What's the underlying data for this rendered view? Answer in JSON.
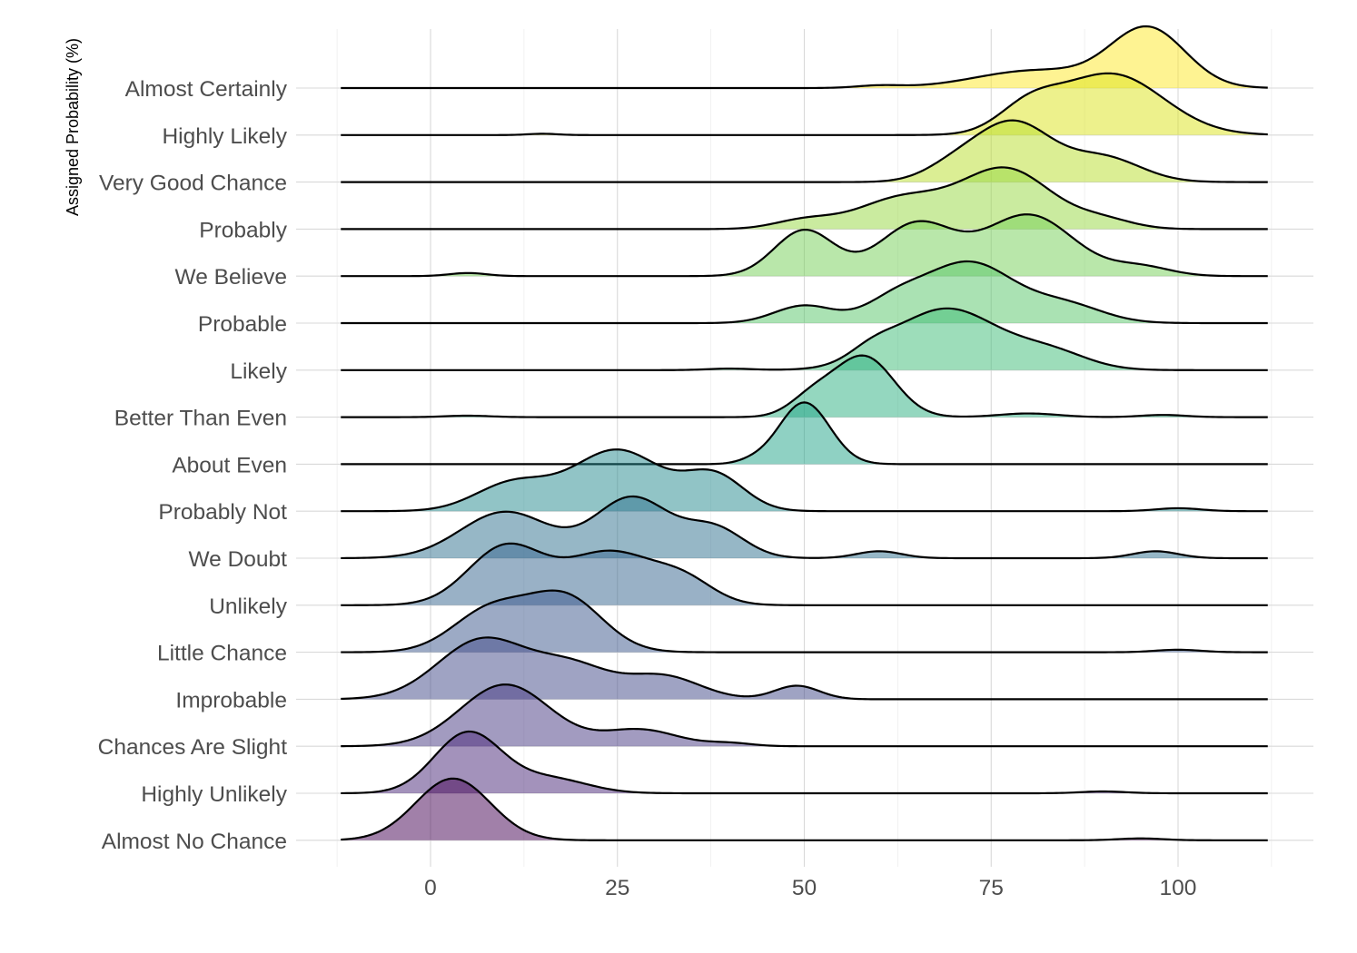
{
  "chart_data": {
    "type": "ridgeline",
    "ylabel": "Assigned Probability (%)",
    "xlabel": "",
    "x_range": [
      -12,
      112
    ],
    "x_ticks": [
      0,
      25,
      50,
      75,
      100
    ],
    "grid": true,
    "color_scale": "viridis",
    "series": [
      {
        "name": "Almost Certainly",
        "color": "#FDE725",
        "components": [
          [
            96,
            5,
            1.0
          ],
          [
            81,
            8,
            0.3
          ],
          [
            60,
            3,
            0.04
          ]
        ]
      },
      {
        "name": "Highly Likely",
        "color": "#DCE319",
        "components": [
          [
            91,
            7,
            0.72
          ],
          [
            80,
            4,
            0.28
          ],
          [
            15,
            2,
            0.015
          ]
        ]
      },
      {
        "name": "Very Good Chance",
        "color": "#B8DE29",
        "components": [
          [
            78,
            5,
            0.72
          ],
          [
            90,
            5,
            0.3
          ],
          [
            70,
            4,
            0.18
          ]
        ]
      },
      {
        "name": "Probably",
        "color": "#95D840",
        "components": [
          [
            77,
            6,
            0.55
          ],
          [
            63,
            6,
            0.28
          ],
          [
            90,
            4,
            0.08
          ],
          [
            50,
            4,
            0.08
          ]
        ]
      },
      {
        "name": "We Believe",
        "color": "#73D055",
        "components": [
          [
            50,
            4,
            0.3
          ],
          [
            65,
            5,
            0.34
          ],
          [
            80,
            6,
            0.4
          ],
          [
            95,
            4,
            0.06
          ],
          [
            5,
            2.5,
            0.02
          ]
        ]
      },
      {
        "name": "Probable",
        "color": "#55C667",
        "components": [
          [
            72,
            6,
            0.62
          ],
          [
            62,
            4,
            0.2
          ],
          [
            50,
            4,
            0.18
          ],
          [
            85,
            5,
            0.18
          ]
        ]
      },
      {
        "name": "Likely",
        "color": "#3CBB75",
        "components": [
          [
            69,
            7,
            0.82
          ],
          [
            83,
            5,
            0.22
          ],
          [
            59,
            3,
            0.14
          ],
          [
            40,
            3,
            0.02
          ]
        ]
      },
      {
        "name": "Better Than Even",
        "color": "#29AF7F",
        "components": [
          [
            58,
            4,
            0.82
          ],
          [
            51,
            3,
            0.25
          ],
          [
            80,
            4,
            0.05
          ],
          [
            98,
            3,
            0.03
          ],
          [
            5,
            3,
            0.02
          ]
        ]
      },
      {
        "name": "About Even",
        "color": "#20A387",
        "components": [
          [
            50,
            3.4,
            1.0
          ],
          [
            43,
            2,
            0.04
          ]
        ]
      },
      {
        "name": "Probably Not",
        "color": "#238A8D",
        "components": [
          [
            25,
            6,
            0.62
          ],
          [
            11,
            5,
            0.28
          ],
          [
            38,
            4,
            0.35
          ],
          [
            100,
            3,
            0.03
          ]
        ]
      },
      {
        "name": "We Doubt",
        "color": "#2D708E",
        "components": [
          [
            27,
            5,
            0.52
          ],
          [
            10,
            6,
            0.4
          ],
          [
            38,
            4,
            0.25
          ],
          [
            60,
            3,
            0.06
          ],
          [
            97,
            3,
            0.06
          ]
        ]
      },
      {
        "name": "Unlikely",
        "color": "#33638D",
        "components": [
          [
            10,
            5,
            0.55
          ],
          [
            24,
            6,
            0.5
          ],
          [
            34,
            4,
            0.2
          ]
        ]
      },
      {
        "name": "Little Chance",
        "color": "#39568C",
        "components": [
          [
            18,
            5,
            0.65
          ],
          [
            8,
            5,
            0.5
          ],
          [
            100,
            3,
            0.03
          ]
        ]
      },
      {
        "name": "Improbable",
        "color": "#404788",
        "components": [
          [
            7,
            6,
            0.62
          ],
          [
            19,
            5,
            0.32
          ],
          [
            31,
            5,
            0.24
          ],
          [
            49,
            3,
            0.14
          ]
        ]
      },
      {
        "name": "Chances Are Slight",
        "color": "#453781",
        "components": [
          [
            10,
            6,
            0.82
          ],
          [
            28,
            5,
            0.22
          ],
          [
            40,
            3,
            0.04
          ]
        ]
      },
      {
        "name": "Highly Unlikely",
        "color": "#482677",
        "components": [
          [
            5,
            4.5,
            1.0
          ],
          [
            16,
            5,
            0.24
          ],
          [
            90,
            3,
            0.03
          ]
        ]
      },
      {
        "name": "Almost No Chance",
        "color": "#440154",
        "components": [
          [
            3,
            5,
            1.0
          ],
          [
            95,
            3,
            0.03
          ]
        ]
      }
    ]
  }
}
